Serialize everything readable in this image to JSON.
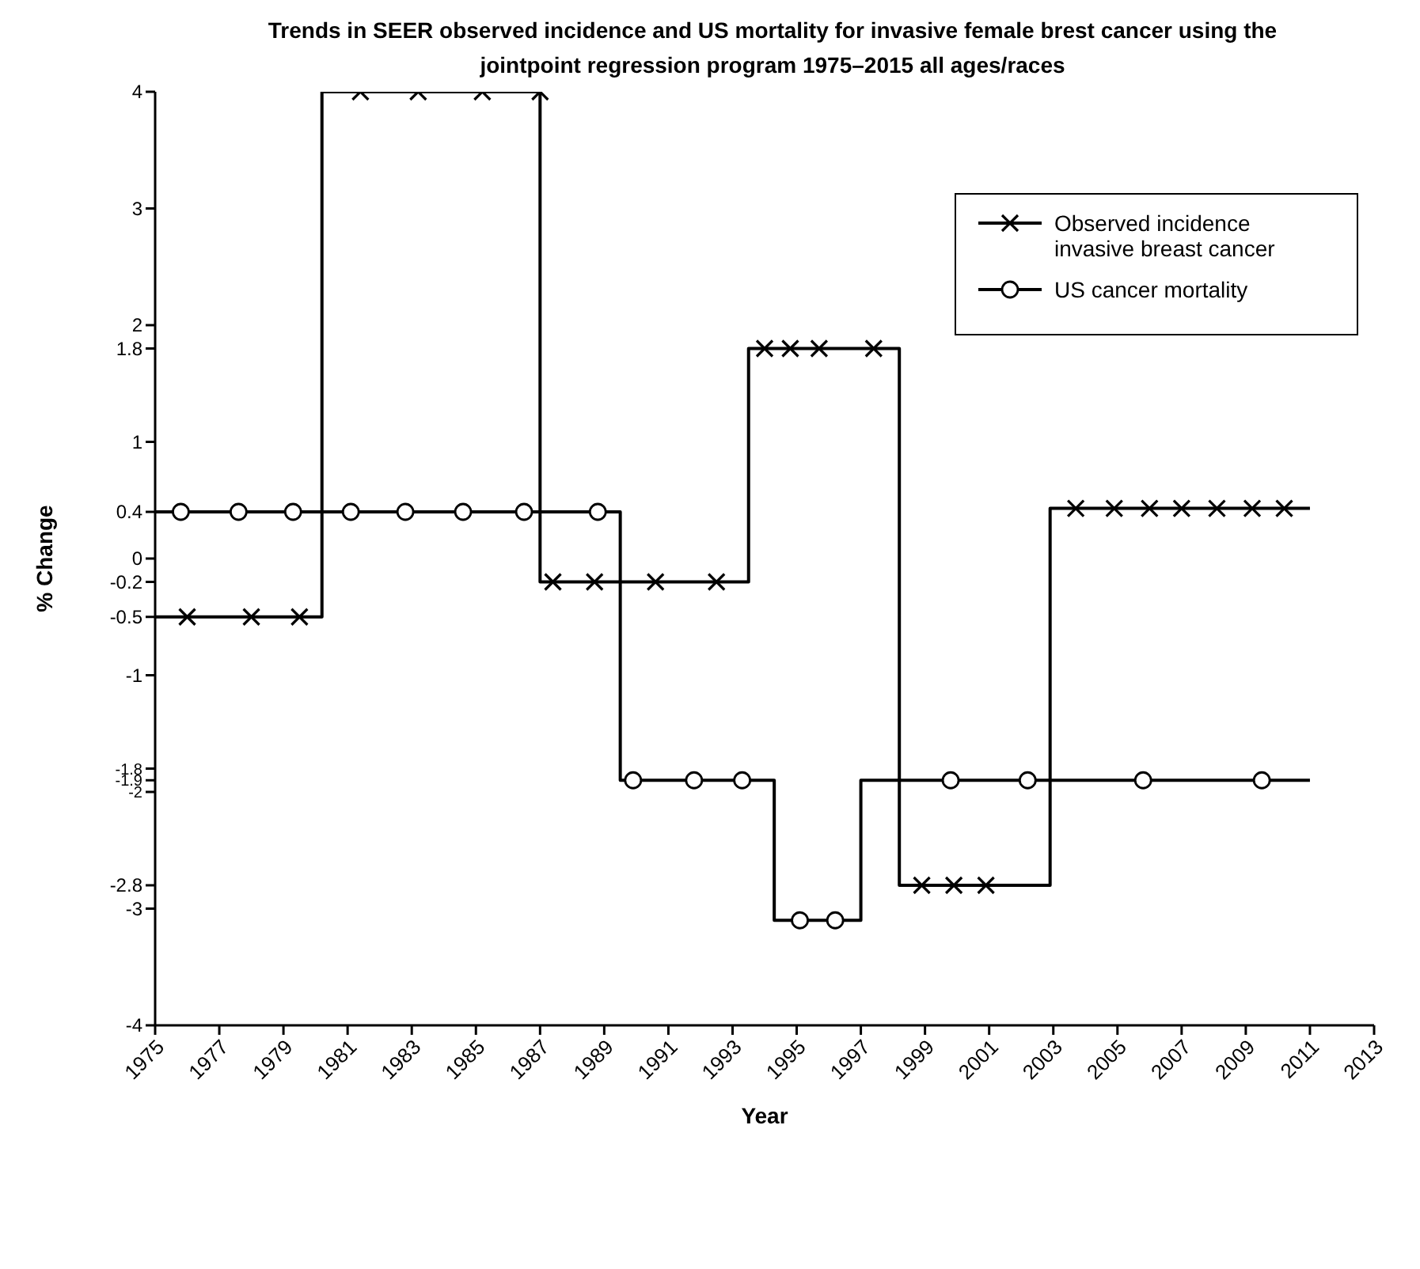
{
  "chart_data": {
    "type": "step",
    "title": "Trends in SEER observed incidence and US mortality for invasive female brest cancer using the jointpoint regression program 1975–2015 all ages/races",
    "xlabel": "Year",
    "ylabel": "% Change",
    "series": [
      {
        "color": "#000000",
        "x": [
          1975,
          1980.2,
          1987,
          1993.5,
          1998.2,
          2002.9,
          2011
        ],
        "values": [
          -0.5,
          4,
          -0.2,
          1.8,
          -2.8,
          0.43,
          0.43
        ]
      },
      {
        "color": "#000000",
        "x": [
          1975,
          1989.5,
          1994.3,
          1997,
          2011
        ],
        "values": [
          0.4,
          -1.9,
          -3.1,
          -1.9,
          -1.9
        ]
      },
      {
        "name": "Observed incidence invasive breast cancer",
        "color": "#000000",
        "type": "scatter",
        "marker": "cross",
        "x": [
          1976,
          1978,
          1979.5,
          1981.4,
          1983.2,
          1985.2,
          1987,
          1987.4,
          1988.7,
          1990.6,
          1992.5,
          1994,
          1994.8,
          1995.7,
          1997.4,
          1998.9,
          1999.9,
          2000.9,
          2003.7,
          2004.9,
          2006,
          2007,
          2008.1,
          2009.2,
          2010.2
        ],
        "values": [
          -0.5,
          -0.5,
          -0.5,
          4,
          4,
          4,
          4,
          -0.2,
          -0.2,
          -0.2,
          -0.2,
          1.8,
          1.8,
          1.8,
          1.8,
          -2.8,
          -2.8,
          -2.8,
          0.43,
          0.43,
          0.43,
          0.43,
          0.43,
          0.43,
          0.43
        ]
      },
      {
        "name": "US cancer mortality",
        "color": "#000000",
        "type": "scatter",
        "marker": "circle",
        "x": [
          1975.8,
          1977.6,
          1979.3,
          1981.1,
          1982.8,
          1984.6,
          1986.5,
          1988.8,
          1989.9,
          1991.8,
          1993.3,
          1995.1,
          1996.2,
          1999.8,
          2002.2,
          2005.8,
          2009.5
        ],
        "values": [
          0.4,
          0.4,
          0.4,
          0.4,
          0.4,
          0.4,
          0.4,
          0.4,
          -1.9,
          -1.9,
          -1.9,
          -3.1,
          -3.1,
          -1.9,
          -1.9,
          -1.9,
          -1.9
        ]
      }
    ],
    "xlim": [
      1975,
      2013
    ],
    "xticks": [
      1975,
      1977,
      1979,
      1981,
      1983,
      1985,
      1987,
      1989,
      1991,
      1993,
      1995,
      1997,
      1999,
      2001,
      2003,
      2005,
      2007,
      2009,
      2011,
      2013
    ],
    "ylim": [
      -4,
      4
    ],
    "yticks": [
      4,
      3,
      2,
      1.8,
      1,
      0.4,
      0,
      -0.2,
      -0.5,
      -1,
      -1.8,
      -1.9,
      -2,
      -2.8,
      -3,
      -4
    ],
    "legend": "top right"
  }
}
